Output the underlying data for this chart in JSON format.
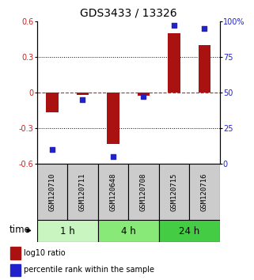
{
  "title": "GDS3433 / 13326",
  "samples": [
    "GSM120710",
    "GSM120711",
    "GSM120648",
    "GSM120708",
    "GSM120715",
    "GSM120716"
  ],
  "log10_ratio": [
    -0.17,
    -0.02,
    -0.43,
    -0.03,
    0.5,
    0.4
  ],
  "percentile_rank": [
    10,
    45,
    5,
    47,
    97,
    95
  ],
  "left_ylim": [
    -0.6,
    0.6
  ],
  "right_ylim": [
    0,
    100
  ],
  "left_yticks": [
    -0.6,
    -0.3,
    0.0,
    0.3,
    0.6
  ],
  "left_yticklabels": [
    "-0.6",
    "-0.3",
    "0",
    "0.3",
    "0.6"
  ],
  "right_yticks": [
    0,
    25,
    50,
    75,
    100
  ],
  "right_yticklabels": [
    "0",
    "25",
    "50",
    "75",
    "100%"
  ],
  "dotted_ylines": [
    -0.3,
    0.3
  ],
  "bar_color": "#aa1111",
  "square_color": "#2222cc",
  "dashed_zero_color": "#cc2222",
  "time_groups": [
    {
      "label": "1 h",
      "n": 2,
      "color": "#c8f5c0"
    },
    {
      "label": "4 h",
      "n": 2,
      "color": "#88e878"
    },
    {
      "label": "24 h",
      "n": 2,
      "color": "#44cc44"
    }
  ],
  "bar_width": 0.4,
  "legend_red_label": "log10 ratio",
  "legend_blue_label": "percentile rank within the sample",
  "time_label": "time",
  "bg_color": "#ffffff",
  "plot_area_bg": "#ffffff",
  "tick_label_color_left": "#cc2222",
  "tick_label_color_right": "#2222cc",
  "title_fontsize": 10,
  "tick_fontsize": 7,
  "sample_label_fontsize": 6.5,
  "group_label_fontsize": 8.5,
  "legend_fontsize": 7
}
